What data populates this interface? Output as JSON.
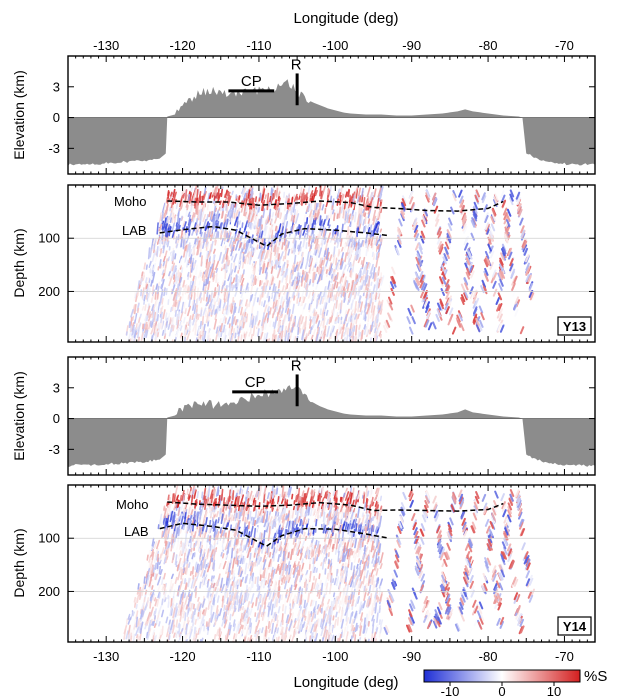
{
  "chart_data": {
    "type": "heatmap",
    "top_xlabel": "Longitude (deg)",
    "bottom_xlabel": "Longitude (deg)",
    "x_ticks": [
      -130,
      -120,
      -110,
      -100,
      -90,
      -80,
      -70
    ],
    "x_tick_labels": [
      "-130",
      "-120",
      "-110",
      "-100",
      "-90",
      "-80",
      "-70"
    ],
    "xlim": [
      -135,
      -66
    ],
    "elevation_panels": [
      {
        "ylabel": "Elevation (km)",
        "y_ticks": [
          3,
          0,
          -3
        ],
        "y_tick_labels": [
          "3",
          "0",
          "-3"
        ],
        "ylim": [
          -5.5,
          6
        ],
        "profile": [
          [
            -135,
            -4.6
          ],
          [
            -133,
            -4.5
          ],
          [
            -131,
            -4.5
          ],
          [
            -129,
            -4.4
          ],
          [
            -127,
            -4.3
          ],
          [
            -125,
            -4.2
          ],
          [
            -123,
            -4.0
          ],
          [
            -122.2,
            -3.5
          ],
          [
            -122,
            0.1
          ],
          [
            -121,
            0.3
          ],
          [
            -120,
            0.8
          ],
          [
            -119,
            1.5
          ],
          [
            -118,
            2.1
          ],
          [
            -117,
            2.4
          ],
          [
            -116,
            2.5
          ],
          [
            -115,
            2.2
          ],
          [
            -114,
            2.0
          ],
          [
            -113,
            2.1
          ],
          [
            -112,
            2.2
          ],
          [
            -111,
            2.3
          ],
          [
            -110,
            2.4
          ],
          [
            -109,
            2.6
          ],
          [
            -108,
            2.7
          ],
          [
            -107,
            3.0
          ],
          [
            -106,
            3.2
          ],
          [
            -105,
            2.3
          ],
          [
            -104,
            1.8
          ],
          [
            -103,
            1.5
          ],
          [
            -102,
            1.2
          ],
          [
            -101,
            0.9
          ],
          [
            -100,
            0.7
          ],
          [
            -99,
            0.5
          ],
          [
            -98,
            0.4
          ],
          [
            -96,
            0.3
          ],
          [
            -94,
            0.3
          ],
          [
            -92,
            0.2
          ],
          [
            -90,
            0.2
          ],
          [
            -88,
            0.3
          ],
          [
            -86,
            0.4
          ],
          [
            -84,
            0.6
          ],
          [
            -83,
            0.8
          ],
          [
            -82,
            0.6
          ],
          [
            -80,
            0.4
          ],
          [
            -78,
            0.2
          ],
          [
            -76,
            0.1
          ],
          [
            -75.5,
            0
          ],
          [
            -75,
            -3.5
          ],
          [
            -73,
            -4.2
          ],
          [
            -70,
            -4.5
          ],
          [
            -66,
            -4.6
          ]
        ],
        "annotations": [
          {
            "label": "CP",
            "x_range": [
              -114,
              -108
            ]
          },
          {
            "label": "R",
            "x": -105
          }
        ]
      },
      {
        "ylabel": "Elevation (km)",
        "y_ticks": [
          3,
          0,
          -3
        ],
        "y_tick_labels": [
          "3",
          "0",
          "-3"
        ],
        "ylim": [
          -5.5,
          6
        ],
        "profile": [
          [
            -135,
            -4.6
          ],
          [
            -133,
            -4.5
          ],
          [
            -131,
            -4.5
          ],
          [
            -129,
            -4.4
          ],
          [
            -127,
            -4.3
          ],
          [
            -125,
            -4.2
          ],
          [
            -123,
            -4.0
          ],
          [
            -122.2,
            -3.5
          ],
          [
            -122,
            0.1
          ],
          [
            -121,
            0.3
          ],
          [
            -120,
            0.7
          ],
          [
            -119,
            1.0
          ],
          [
            -118,
            1.2
          ],
          [
            -117,
            1.3
          ],
          [
            -116,
            1.2
          ],
          [
            -115,
            1.3
          ],
          [
            -114,
            1.5
          ],
          [
            -113,
            1.6
          ],
          [
            -112,
            1.8
          ],
          [
            -111,
            1.9
          ],
          [
            -110,
            2.2
          ],
          [
            -109,
            2.3
          ],
          [
            -108,
            2.4
          ],
          [
            -107,
            2.6
          ],
          [
            -106,
            2.9
          ],
          [
            -105,
            3.1
          ],
          [
            -104,
            2.0
          ],
          [
            -103,
            1.6
          ],
          [
            -102,
            1.2
          ],
          [
            -101,
            0.9
          ],
          [
            -100,
            0.7
          ],
          [
            -99,
            0.5
          ],
          [
            -98,
            0.4
          ],
          [
            -96,
            0.3
          ],
          [
            -94,
            0.3
          ],
          [
            -92,
            0.2
          ],
          [
            -90,
            0.2
          ],
          [
            -88,
            0.3
          ],
          [
            -86,
            0.4
          ],
          [
            -84,
            0.6
          ],
          [
            -83,
            0.9
          ],
          [
            -82,
            0.6
          ],
          [
            -80,
            0.4
          ],
          [
            -78,
            0.2
          ],
          [
            -76,
            0.1
          ],
          [
            -75.5,
            0
          ],
          [
            -75,
            -3.5
          ],
          [
            -73,
            -4.2
          ],
          [
            -70,
            -4.5
          ],
          [
            -66,
            -4.6
          ]
        ],
        "annotations": [
          {
            "label": "CP",
            "x_range": [
              -113.5,
              -107.5
            ]
          },
          {
            "label": "R",
            "x": -105
          }
        ]
      }
    ],
    "depth_panels": [
      {
        "ylabel": "Depth (km)",
        "y_ticks": [
          100,
          200
        ],
        "y_tick_labels": [
          "100",
          "200"
        ],
        "ylim": [
          295,
          0
        ],
        "tag": "Y13",
        "moho_label": "Moho",
        "lab_label": "LAB",
        "moho": [
          [
            -122,
            30
          ],
          [
            -118,
            32
          ],
          [
            -114,
            32
          ],
          [
            -110,
            38
          ],
          [
            -106,
            35
          ],
          [
            -102,
            30
          ],
          [
            -98,
            33
          ],
          [
            -95,
            42
          ],
          [
            -92,
            44
          ],
          [
            -88,
            48
          ],
          [
            -84,
            49
          ],
          [
            -80,
            44
          ],
          [
            -78,
            31
          ]
        ],
        "lab": [
          [
            -123,
            90
          ],
          [
            -120,
            84
          ],
          [
            -116,
            78
          ],
          [
            -113,
            85
          ],
          [
            -111,
            100
          ],
          [
            -109,
            115
          ],
          [
            -107,
            92
          ],
          [
            -104,
            82
          ],
          [
            -100,
            85
          ],
          [
            -96,
            90
          ],
          [
            -93,
            95
          ]
        ]
      },
      {
        "ylabel": "Depth (km)",
        "y_ticks": [
          100,
          200
        ],
        "y_tick_labels": [
          "100",
          "200"
        ],
        "ylim": [
          295,
          0
        ],
        "tag": "Y14",
        "moho_label": "Moho",
        "lab_label": "LAB",
        "moho": [
          [
            -122,
            32
          ],
          [
            -118,
            36
          ],
          [
            -114,
            38
          ],
          [
            -110,
            40
          ],
          [
            -106,
            38
          ],
          [
            -102,
            33
          ],
          [
            -98,
            38
          ],
          [
            -95,
            48
          ],
          [
            -92,
            47
          ],
          [
            -88,
            48
          ],
          [
            -84,
            49
          ],
          [
            -80,
            46
          ],
          [
            -78,
            35
          ]
        ],
        "lab": [
          [
            -123,
            82
          ],
          [
            -120,
            72
          ],
          [
            -116,
            78
          ],
          [
            -113,
            85
          ],
          [
            -111,
            100
          ],
          [
            -109,
            115
          ],
          [
            -107,
            95
          ],
          [
            -104,
            82
          ],
          [
            -100,
            83
          ],
          [
            -96,
            92
          ],
          [
            -93,
            100
          ]
        ]
      }
    ],
    "colorbar": {
      "label": "%S",
      "ticks": [
        -10,
        0,
        10
      ],
      "tick_labels": [
        "-10",
        "0",
        "10"
      ],
      "range": [
        -15,
        15
      ],
      "colors": [
        "#1f2fd6",
        "#ffffff",
        "#d41f1f"
      ]
    }
  }
}
